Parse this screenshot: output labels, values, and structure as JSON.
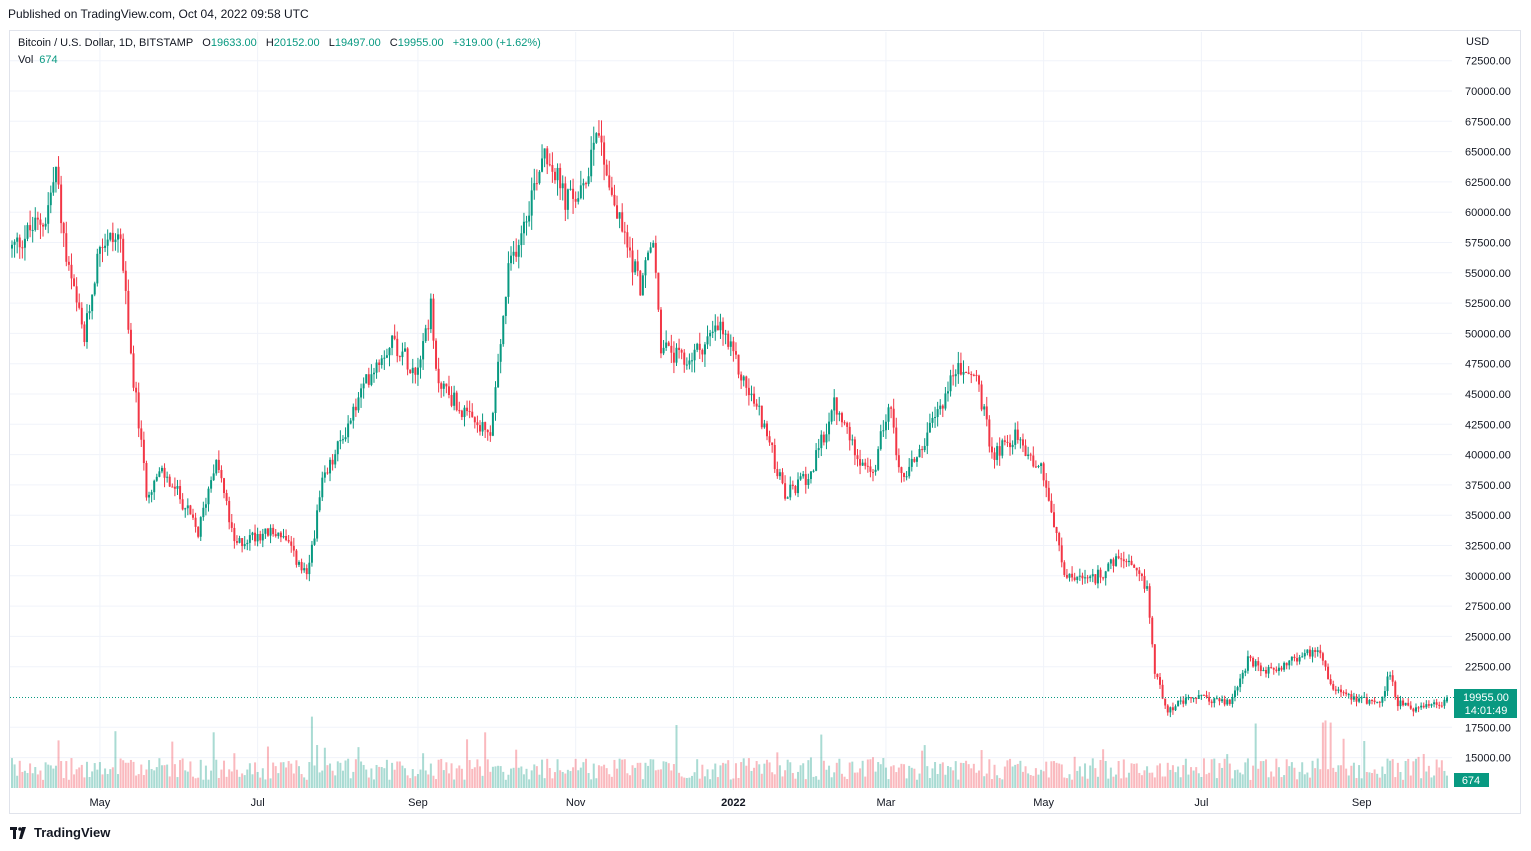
{
  "header": {
    "published": "Published on TradingView.com, Oct 04, 2022 09:58 UTC"
  },
  "legend": {
    "symbol": "Bitcoin / U.S. Dollar, 1D, BITSTAMP",
    "open_label": "O",
    "open": "19633.00",
    "high_label": "H",
    "high": "20152.00",
    "low_label": "L",
    "low": "19497.00",
    "close_label": "C",
    "close": "19955.00",
    "change": "+319.00 (+1.62%)",
    "vol_label": "Vol",
    "vol": "674"
  },
  "footer": {
    "brand": "TradingView",
    "logo_icon": "tradingview-logo-icon"
  },
  "colors": {
    "up": "#089981",
    "down": "#f23645",
    "grid": "#f0f3fa",
    "price_badge": "#089981"
  },
  "chart_data": {
    "type": "candlestick",
    "currency": "USD",
    "y_ticks": [
      "72500.00",
      "70000.00",
      "67500.00",
      "65000.00",
      "62500.00",
      "60000.00",
      "57500.00",
      "55000.00",
      "52500.00",
      "50000.00",
      "47500.00",
      "45000.00",
      "42500.00",
      "40000.00",
      "37500.00",
      "35000.00",
      "32500.00",
      "30000.00",
      "27500.00",
      "25000.00",
      "22500.00",
      "17500.00",
      "15000.00"
    ],
    "x_ticks": [
      "May",
      "Jul",
      "Sep",
      "Nov",
      "2022",
      "Mar",
      "May",
      "Jul",
      "Sep"
    ],
    "last_price": "19955.00",
    "countdown": "14:01:49",
    "last_volume": "674",
    "price_path": [
      {
        "d": "2021-03-28",
        "p": 57000
      },
      {
        "d": "2021-04-04",
        "p": 58500
      },
      {
        "d": "2021-04-10",
        "p": 59500
      },
      {
        "d": "2021-04-14",
        "p": 63500
      },
      {
        "d": "2021-04-18",
        "p": 56000
      },
      {
        "d": "2021-04-25",
        "p": 49500
      },
      {
        "d": "2021-05-01",
        "p": 57500
      },
      {
        "d": "2021-05-09",
        "p": 58000
      },
      {
        "d": "2021-05-12",
        "p": 50000
      },
      {
        "d": "2021-05-19",
        "p": 37000
      },
      {
        "d": "2021-05-25",
        "p": 38500
      },
      {
        "d": "2021-06-01",
        "p": 36500
      },
      {
        "d": "2021-06-08",
        "p": 33500
      },
      {
        "d": "2021-06-15",
        "p": 40000
      },
      {
        "d": "2021-06-22",
        "p": 32500
      },
      {
        "d": "2021-07-01",
        "p": 33500
      },
      {
        "d": "2021-07-10",
        "p": 33500
      },
      {
        "d": "2021-07-20",
        "p": 29800
      },
      {
        "d": "2021-07-26",
        "p": 37500
      },
      {
        "d": "2021-08-07",
        "p": 43500
      },
      {
        "d": "2021-08-14",
        "p": 47000
      },
      {
        "d": "2021-08-22",
        "p": 49500
      },
      {
        "d": "2021-08-31",
        "p": 47000
      },
      {
        "d": "2021-09-06",
        "p": 52000
      },
      {
        "d": "2021-09-08",
        "p": 46500
      },
      {
        "d": "2021-09-20",
        "p": 43000
      },
      {
        "d": "2021-09-29",
        "p": 41500
      },
      {
        "d": "2021-10-06",
        "p": 55000
      },
      {
        "d": "2021-10-15",
        "p": 61500
      },
      {
        "d": "2021-10-20",
        "p": 65500
      },
      {
        "d": "2021-10-28",
        "p": 61000
      },
      {
        "d": "2021-11-04",
        "p": 61500
      },
      {
        "d": "2021-11-09",
        "p": 67500
      },
      {
        "d": "2021-11-16",
        "p": 60500
      },
      {
        "d": "2021-11-26",
        "p": 54000
      },
      {
        "d": "2021-12-01",
        "p": 57500
      },
      {
        "d": "2021-12-04",
        "p": 49000
      },
      {
        "d": "2021-12-13",
        "p": 47500
      },
      {
        "d": "2021-12-27",
        "p": 50500
      },
      {
        "d": "2022-01-05",
        "p": 46000
      },
      {
        "d": "2022-01-12",
        "p": 43000
      },
      {
        "d": "2022-01-21",
        "p": 36500
      },
      {
        "d": "2022-01-31",
        "p": 38500
      },
      {
        "d": "2022-02-09",
        "p": 44000
      },
      {
        "d": "2022-02-17",
        "p": 40500
      },
      {
        "d": "2022-02-24",
        "p": 38000
      },
      {
        "d": "2022-03-02",
        "p": 44500
      },
      {
        "d": "2022-03-07",
        "p": 38000
      },
      {
        "d": "2022-03-16",
        "p": 41000
      },
      {
        "d": "2022-03-28",
        "p": 47000
      },
      {
        "d": "2022-04-05",
        "p": 46500
      },
      {
        "d": "2022-04-11",
        "p": 40000
      },
      {
        "d": "2022-04-20",
        "p": 41500
      },
      {
        "d": "2022-05-01",
        "p": 38500
      },
      {
        "d": "2022-05-09",
        "p": 30000
      },
      {
        "d": "2022-05-19",
        "p": 29500
      },
      {
        "d": "2022-05-31",
        "p": 31500
      },
      {
        "d": "2022-06-10",
        "p": 29000
      },
      {
        "d": "2022-06-13",
        "p": 22000
      },
      {
        "d": "2022-06-18",
        "p": 19000
      },
      {
        "d": "2022-06-29",
        "p": 20000
      },
      {
        "d": "2022-07-12",
        "p": 19500
      },
      {
        "d": "2022-07-19",
        "p": 23000
      },
      {
        "d": "2022-07-26",
        "p": 22000
      },
      {
        "d": "2022-08-10",
        "p": 23500
      },
      {
        "d": "2022-08-16",
        "p": 24000
      },
      {
        "d": "2022-08-20",
        "p": 21000
      },
      {
        "d": "2022-08-29",
        "p": 20000
      },
      {
        "d": "2022-09-08",
        "p": 19500
      },
      {
        "d": "2022-09-12",
        "p": 22000
      },
      {
        "d": "2022-09-15",
        "p": 19500
      },
      {
        "d": "2022-09-20",
        "p": 19000
      },
      {
        "d": "2022-10-01",
        "p": 19300
      },
      {
        "d": "2022-10-04",
        "p": 19955
      }
    ]
  }
}
